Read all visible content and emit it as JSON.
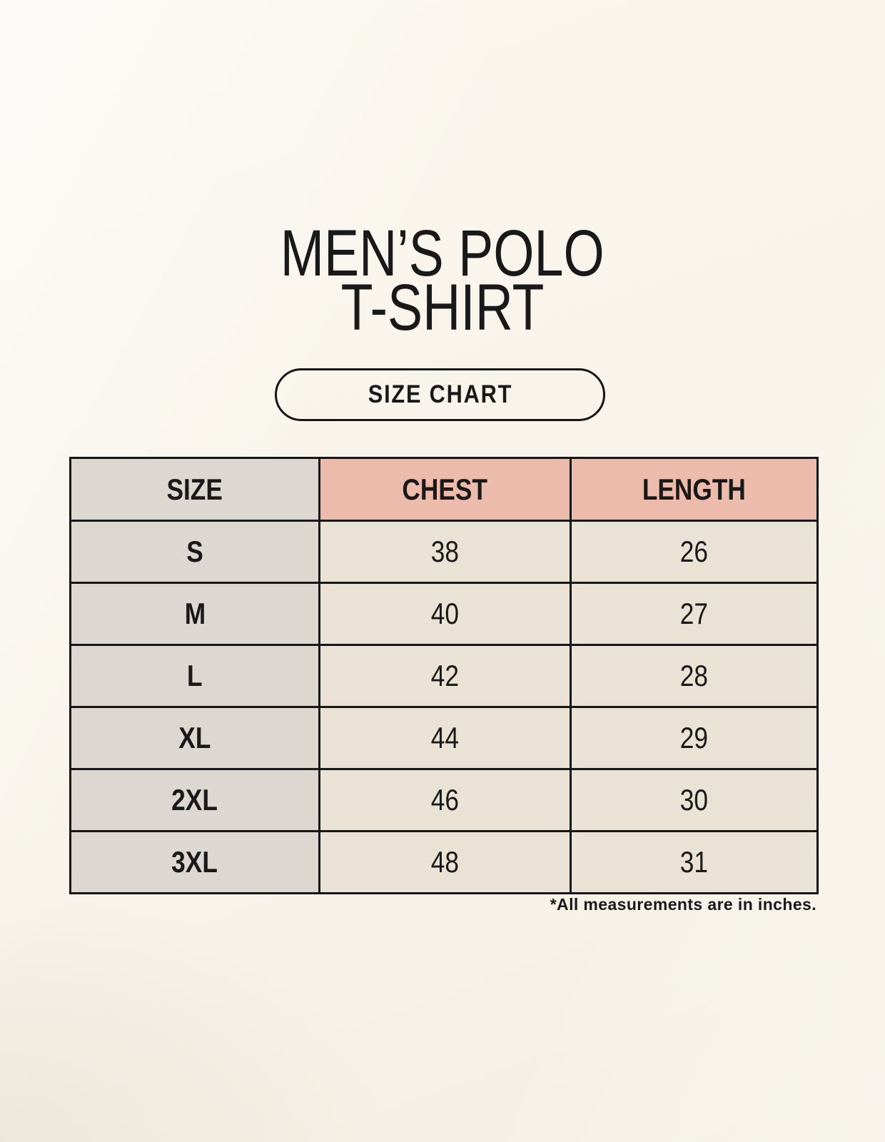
{
  "header": {
    "title_line1": "MEN’S POLO",
    "title_line2": "T-SHIRT",
    "badge_label": "SIZE CHART"
  },
  "chart_data": {
    "type": "table",
    "title": "MEN’S POLO T-SHIRT",
    "columns": [
      "SIZE",
      "CHEST",
      "LENGTH"
    ],
    "rows": [
      [
        "S",
        "38",
        "26"
      ],
      [
        "M",
        "40",
        "27"
      ],
      [
        "L",
        "42",
        "28"
      ],
      [
        "XL",
        "44",
        "29"
      ],
      [
        "2XL",
        "46",
        "30"
      ],
      [
        "3XL",
        "48",
        "31"
      ]
    ],
    "units": "inches"
  },
  "footnote": "*All measurements are in inches.",
  "colors": {
    "background": "#f8f4eb",
    "size_column_bg": "#ddd7d1",
    "accent_header_bg": "#edbbab",
    "data_cell_bg": "#e9e2d5",
    "border": "#161616",
    "text": "#191919"
  }
}
